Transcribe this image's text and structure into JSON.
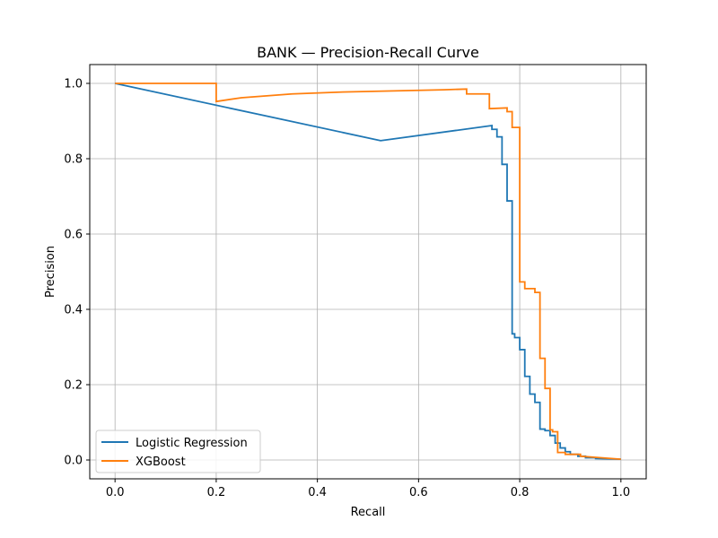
{
  "chart_data": {
    "type": "line",
    "title": "BANK — Precision-Recall Curve",
    "xlabel": "Recall",
    "ylabel": "Precision",
    "xlim": [
      -0.05,
      1.05
    ],
    "ylim": [
      -0.05,
      1.05
    ],
    "xticks": [
      0.0,
      0.2,
      0.4,
      0.6,
      0.8,
      1.0
    ],
    "xtick_labels": [
      "0.0",
      "0.2",
      "0.4",
      "0.6",
      "0.8",
      "1.0"
    ],
    "yticks": [
      0.0,
      0.2,
      0.4,
      0.6,
      0.8,
      1.0
    ],
    "ytick_labels": [
      "0.0",
      "0.2",
      "0.4",
      "0.6",
      "0.8",
      "1.0"
    ],
    "grid": true,
    "legend": "lower-left",
    "series": [
      {
        "name": "Logistic Regression",
        "color": "#1f77b4",
        "x": [
          0.0,
          0.525,
          0.745,
          0.745,
          0.755,
          0.755,
          0.765,
          0.765,
          0.775,
          0.775,
          0.785,
          0.785,
          0.79,
          0.79,
          0.8,
          0.8,
          0.81,
          0.81,
          0.82,
          0.82,
          0.83,
          0.83,
          0.84,
          0.84,
          0.85,
          0.85,
          0.86,
          0.86,
          0.87,
          0.87,
          0.88,
          0.88,
          0.89,
          0.89,
          0.9,
          0.9,
          0.915,
          0.915,
          0.93,
          0.93,
          0.95,
          0.95,
          1.0
        ],
        "y": [
          1.0,
          0.848,
          0.888,
          0.878,
          0.878,
          0.858,
          0.858,
          0.785,
          0.785,
          0.688,
          0.688,
          0.335,
          0.335,
          0.325,
          0.325,
          0.293,
          0.293,
          0.222,
          0.222,
          0.175,
          0.175,
          0.153,
          0.153,
          0.082,
          0.082,
          0.078,
          0.078,
          0.065,
          0.065,
          0.045,
          0.045,
          0.032,
          0.032,
          0.022,
          0.022,
          0.015,
          0.015,
          0.01,
          0.01,
          0.006,
          0.006,
          0.004,
          0.002
        ]
      },
      {
        "name": "XGBoost",
        "color": "#ff7f0e",
        "x": [
          0.0,
          0.2,
          0.2,
          0.25,
          0.35,
          0.45,
          0.55,
          0.65,
          0.695,
          0.695,
          0.74,
          0.74,
          0.775,
          0.775,
          0.785,
          0.785,
          0.8,
          0.8,
          0.81,
          0.81,
          0.83,
          0.83,
          0.84,
          0.84,
          0.85,
          0.85,
          0.86,
          0.86,
          0.865,
          0.865,
          0.875,
          0.875,
          0.89,
          0.89,
          0.92,
          0.92,
          1.0
        ],
        "y": [
          1.0,
          1.0,
          0.952,
          0.962,
          0.972,
          0.977,
          0.98,
          0.983,
          0.985,
          0.972,
          0.972,
          0.933,
          0.935,
          0.925,
          0.925,
          0.883,
          0.883,
          0.473,
          0.473,
          0.455,
          0.455,
          0.445,
          0.445,
          0.27,
          0.27,
          0.19,
          0.19,
          0.08,
          0.08,
          0.075,
          0.075,
          0.02,
          0.02,
          0.015,
          0.015,
          0.01,
          0.002
        ]
      }
    ]
  }
}
